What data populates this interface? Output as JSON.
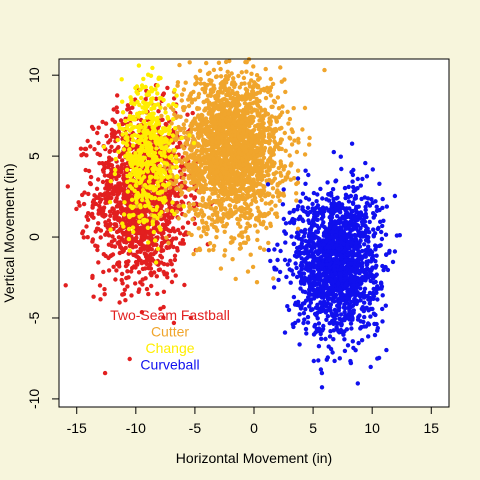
{
  "chart_data": {
    "type": "scatter",
    "title": "",
    "xlabel": "Horizontal Movement (in)",
    "ylabel": "Vertical Movement (in)",
    "xlim": [
      -16.5,
      16.5
    ],
    "ylim": [
      -10.5,
      11
    ],
    "xticks": [
      -15,
      -10,
      -5,
      0,
      5,
      10,
      15
    ],
    "yticks": [
      -10,
      -5,
      0,
      5,
      10
    ],
    "grid": false,
    "legend_position": "bottom-left",
    "background": "#f7f5dc",
    "plot_background": "#ffffff",
    "series": [
      {
        "name": "Two-Seam Fastball",
        "color": "#e21f1f",
        "center_x": -9.5,
        "center_y": 2.5,
        "spread_x": 2.0,
        "spread_y": 2.6,
        "count": 1500
      },
      {
        "name": "Cutter",
        "color": "#f0a52c",
        "center_x": -2.0,
        "center_y": 5.3,
        "spread_x": 2.2,
        "spread_y": 2.3,
        "count": 2200
      },
      {
        "name": "Change",
        "color": "#ffee00",
        "center_x": -9.0,
        "center_y": 5.0,
        "spread_x": 1.2,
        "spread_y": 2.3,
        "count": 500
      },
      {
        "name": "Curveball",
        "color": "#1010ee",
        "center_x": 7.0,
        "center_y": -1.5,
        "spread_x": 1.8,
        "spread_y": 2.2,
        "count": 1700
      }
    ],
    "draw_order": [
      "Two-Seam Fastball",
      "Cutter",
      "Change",
      "Curveball"
    ]
  }
}
